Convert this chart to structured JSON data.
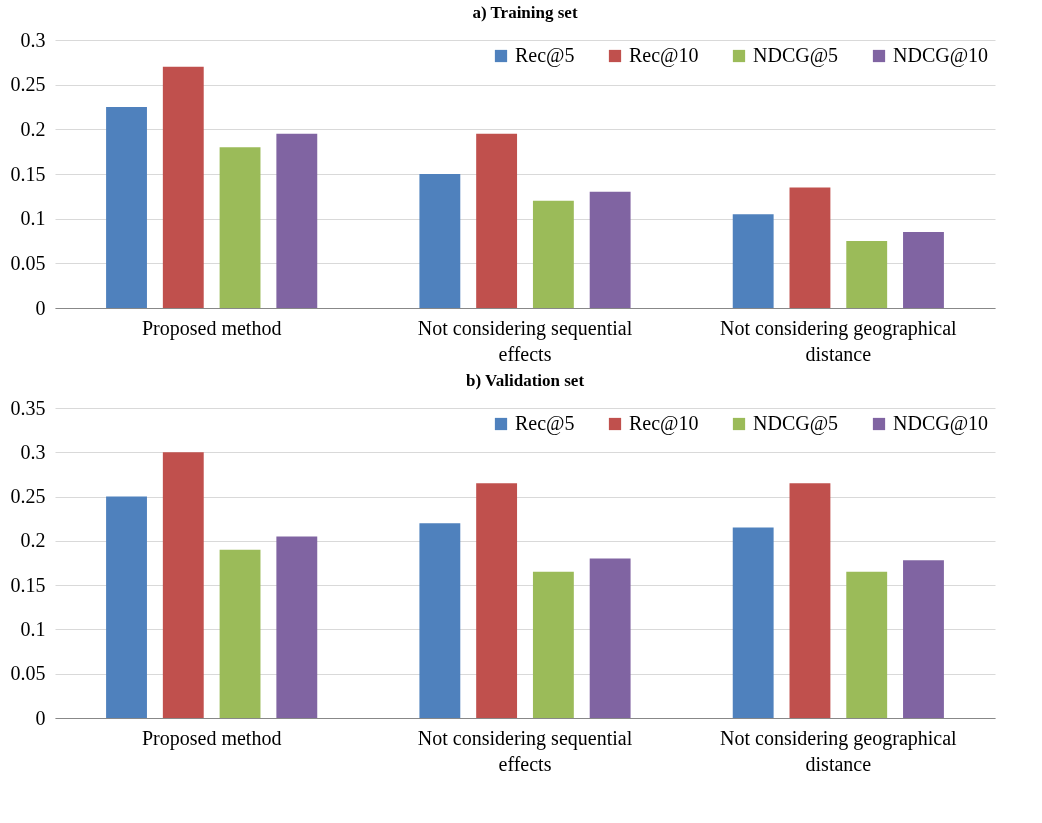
{
  "chart_data": [
    {
      "type": "bar",
      "title": "a) Training set",
      "categories": [
        "Proposed method",
        "Not considering sequential effects",
        "Not considering geographical distance"
      ],
      "series": [
        {
          "name": "Rec@5",
          "color": "#4f81bd",
          "values": [
            0.225,
            0.15,
            0.105
          ]
        },
        {
          "name": "Rec@10",
          "color": "#c0504d",
          "values": [
            0.27,
            0.195,
            0.135
          ]
        },
        {
          "name": "NDCG@5",
          "color": "#9bbb59",
          "values": [
            0.18,
            0.12,
            0.075
          ]
        },
        {
          "name": "NDCG@10",
          "color": "#8064a2",
          "values": [
            0.195,
            0.13,
            0.085
          ]
        }
      ],
      "ylim": [
        0,
        0.3
      ],
      "yticks": [
        0,
        0.05,
        0.1,
        0.15,
        0.2,
        0.25,
        0.3
      ],
      "grid": "y",
      "legend": "top right"
    },
    {
      "type": "bar",
      "title": "b) Validation set",
      "categories": [
        "Proposed method",
        "Not considering sequential effects",
        "Not considering geographical distance"
      ],
      "series": [
        {
          "name": "Rec@5",
          "color": "#4f81bd",
          "values": [
            0.25,
            0.22,
            0.215
          ]
        },
        {
          "name": "Rec@10",
          "color": "#c0504d",
          "values": [
            0.3,
            0.265,
            0.265
          ]
        },
        {
          "name": "NDCG@5",
          "color": "#9bbb59",
          "values": [
            0.19,
            0.165,
            0.165
          ]
        },
        {
          "name": "NDCG@10",
          "color": "#8064a2",
          "values": [
            0.205,
            0.18,
            0.178
          ]
        }
      ],
      "ylim": [
        0,
        0.35
      ],
      "yticks": [
        0,
        0.05,
        0.1,
        0.15,
        0.2,
        0.25,
        0.3,
        0.35
      ],
      "grid": "y",
      "legend": "top right"
    }
  ]
}
